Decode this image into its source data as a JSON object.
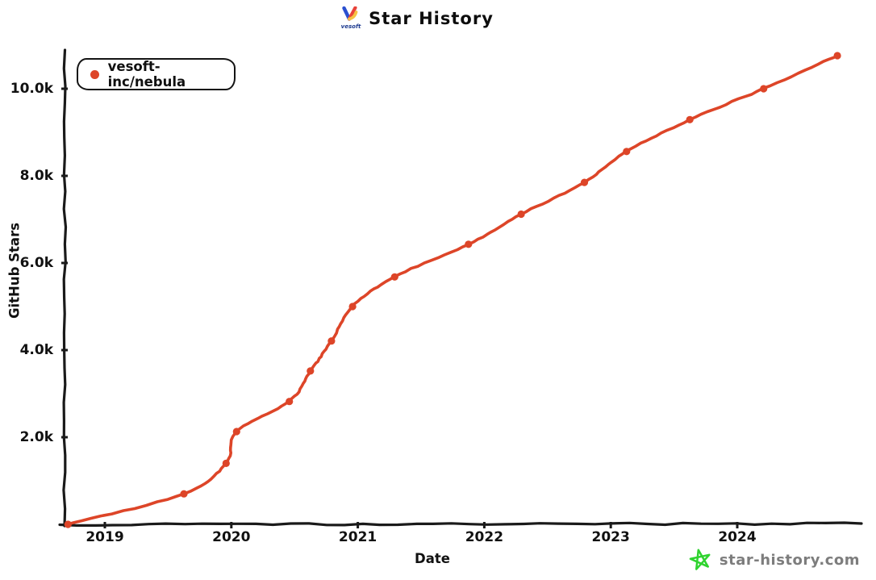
{
  "title": {
    "text": "Star History",
    "logo_label": "vesoft"
  },
  "legend": {
    "series_label": "vesoft-inc/nebula",
    "marker_color": "#dd4528"
  },
  "axes": {
    "x_label": "Date",
    "y_label": "GitHub Stars",
    "x_tick_labels": [
      "2019",
      "2020",
      "2021",
      "2022",
      "2023",
      "2024"
    ],
    "y_tick_labels": [
      "2.0k",
      "4.0k",
      "6.0k",
      "8.0k",
      "10.0k"
    ]
  },
  "watermark": {
    "text": "star-history.com",
    "star_color": "#2fd32f",
    "text_color": "#7d7d7d"
  },
  "colors": {
    "line": "#dd4528",
    "axis": "#1a1a1a",
    "background": "#ffffff"
  },
  "chart_data": {
    "type": "line",
    "title": "Star History",
    "xlabel": "Date",
    "ylabel": "GitHub Stars",
    "x_tick_labels": [
      "2019",
      "2020",
      "2021",
      "2022",
      "2023",
      "2024"
    ],
    "x_tick_years": [
      2019,
      2020,
      2021,
      2022,
      2023,
      2024
    ],
    "y_tick_labels": [
      "2.0k",
      "4.0k",
      "6.0k",
      "8.0k",
      "10.0k"
    ],
    "y_tick_values": [
      2000,
      4000,
      6000,
      8000,
      10000
    ],
    "ylim": [
      0,
      11000
    ],
    "xlim_years": [
      2018.65,
      2025.0
    ],
    "grid": false,
    "legend_position": "top-left",
    "style": "xkcd-hand-drawn",
    "series": [
      {
        "name": "vesoft-inc/nebula",
        "color": "#dd4528",
        "points": [
          {
            "date": "2018-09",
            "stars": 0
          },
          {
            "date": "2019-08",
            "stars": 700
          },
          {
            "date": "2019-12",
            "stars": 1400
          },
          {
            "date": "2020-01",
            "stars": 2130
          },
          {
            "date": "2020-06",
            "stars": 2820
          },
          {
            "date": "2020-08",
            "stars": 3520
          },
          {
            "date": "2020-10",
            "stars": 4210
          },
          {
            "date": "2020-12",
            "stars": 5000
          },
          {
            "date": "2021-04",
            "stars": 5680
          },
          {
            "date": "2021-11",
            "stars": 6430
          },
          {
            "date": "2022-04",
            "stars": 7120
          },
          {
            "date": "2022-10",
            "stars": 7850
          },
          {
            "date": "2023-02",
            "stars": 8560
          },
          {
            "date": "2023-08",
            "stars": 9290
          },
          {
            "date": "2024-03",
            "stars": 10000
          },
          {
            "date": "2024-10",
            "stars": 10760
          }
        ]
      }
    ]
  }
}
